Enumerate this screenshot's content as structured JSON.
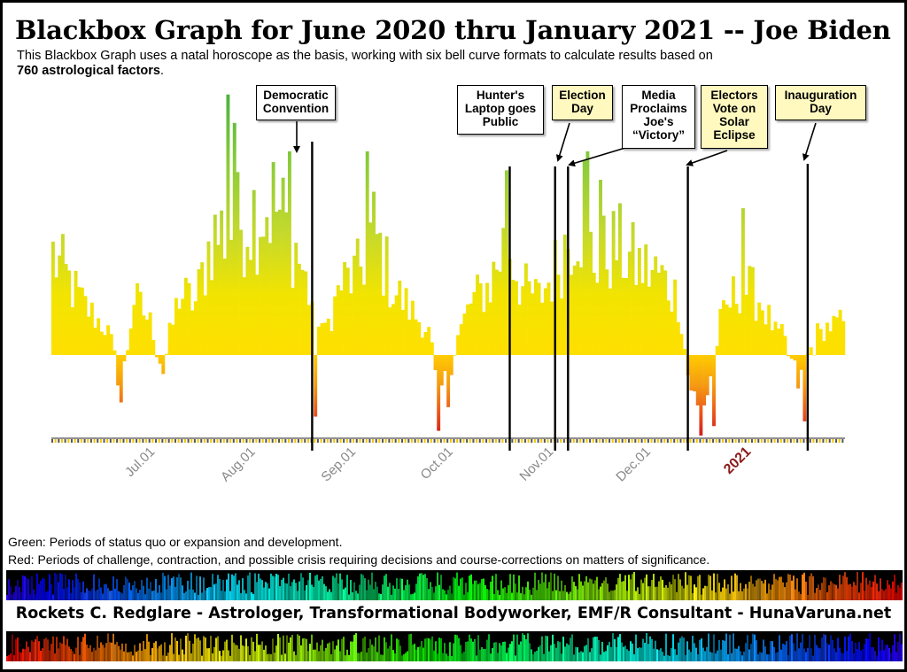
{
  "title": "Blackbox Graph for June 2020 thru January 2021 -- Joe Biden",
  "subtitle": {
    "text": "This Blackbox Graph uses a natal horoscope as the basis, working with six bell curve formats to calculate results based on",
    "bold": "760 astrological factors",
    "tail": "."
  },
  "chart_data": {
    "type": "bar",
    "x_range": [
      "2020-06-01",
      "2021-01-31"
    ],
    "baseline": 0,
    "ylim": [
      -90,
      290
    ],
    "x_tick_labels": [
      {
        "label": "Jul.01",
        "date": "2020-07-01",
        "color": "#888888"
      },
      {
        "label": "Aug.01",
        "date": "2020-08-01",
        "color": "#888888"
      },
      {
        "label": "Sep.01",
        "date": "2020-09-01",
        "color": "#888888"
      },
      {
        "label": "Oct.01",
        "date": "2020-10-01",
        "color": "#888888"
      },
      {
        "label": "Nov.01",
        "date": "2020-11-01",
        "color": "#888888"
      },
      {
        "label": "Dec.01",
        "date": "2020-12-01",
        "color": "#888888"
      },
      {
        "label": "2021",
        "date": "2021-01-01",
        "color": "#8b1a1a"
      }
    ],
    "daily_keyframes": [
      {
        "date": "2020-06-01",
        "value": 105
      },
      {
        "date": "2020-06-10",
        "value": 55
      },
      {
        "date": "2020-06-18",
        "value": 25
      },
      {
        "date": "2020-06-22",
        "value": -40
      },
      {
        "date": "2020-06-26",
        "value": 60
      },
      {
        "date": "2020-07-01",
        "value": 35
      },
      {
        "date": "2020-07-05",
        "value": -15
      },
      {
        "date": "2020-07-10",
        "value": 65
      },
      {
        "date": "2020-07-15",
        "value": 55
      },
      {
        "date": "2020-07-20",
        "value": 125
      },
      {
        "date": "2020-07-27",
        "value": 135
      },
      {
        "date": "2020-08-01",
        "value": 150
      },
      {
        "date": "2020-08-08",
        "value": 160
      },
      {
        "date": "2020-08-14",
        "value": 125
      },
      {
        "date": "2020-08-19",
        "value": 65
      },
      {
        "date": "2020-08-24",
        "value": 25
      },
      {
        "date": "2020-08-29",
        "value": 75
      },
      {
        "date": "2020-09-03",
        "value": 85
      },
      {
        "date": "2020-09-08",
        "value": 130
      },
      {
        "date": "2020-09-14",
        "value": 70
      },
      {
        "date": "2020-09-20",
        "value": 45
      },
      {
        "date": "2020-09-25",
        "value": 25
      },
      {
        "date": "2020-09-28",
        "value": -45
      },
      {
        "date": "2020-10-01",
        "value": -15
      },
      {
        "date": "2020-10-04",
        "value": 20
      },
      {
        "date": "2020-10-08",
        "value": 55
      },
      {
        "date": "2020-10-14",
        "value": 75
      },
      {
        "date": "2020-10-19",
        "value": 125
      },
      {
        "date": "2020-10-24",
        "value": 70
      },
      {
        "date": "2020-10-29",
        "value": 60
      },
      {
        "date": "2020-11-03",
        "value": 90
      },
      {
        "date": "2020-11-10",
        "value": 150
      },
      {
        "date": "2020-11-15",
        "value": 100
      },
      {
        "date": "2020-11-22",
        "value": 115
      },
      {
        "date": "2020-11-28",
        "value": 95
      },
      {
        "date": "2020-12-05",
        "value": 85
      },
      {
        "date": "2020-12-11",
        "value": 60
      },
      {
        "date": "2020-12-14",
        "value": -20
      },
      {
        "date": "2020-12-17",
        "value": -60
      },
      {
        "date": "2020-12-20",
        "value": -40
      },
      {
        "date": "2020-12-24",
        "value": 35
      },
      {
        "date": "2020-12-30",
        "value": 75
      },
      {
        "date": "2021-01-05",
        "value": 60
      },
      {
        "date": "2021-01-10",
        "value": 25
      },
      {
        "date": "2021-01-13",
        "value": 10
      },
      {
        "date": "2021-01-17",
        "value": -30
      },
      {
        "date": "2021-01-22",
        "value": 15
      },
      {
        "date": "2021-01-26",
        "value": 30
      },
      {
        "date": "2021-01-31",
        "value": 35
      }
    ],
    "spikes": [
      {
        "date": "2020-06-22",
        "value": -50
      },
      {
        "date": "2020-07-05",
        "value": -20
      },
      {
        "date": "2020-07-25",
        "value": 275
      },
      {
        "date": "2020-07-27",
        "value": 245
      },
      {
        "date": "2020-08-13",
        "value": 215
      },
      {
        "date": "2020-08-21",
        "value": -65
      },
      {
        "date": "2020-09-06",
        "value": 215
      },
      {
        "date": "2020-09-28",
        "value": -80
      },
      {
        "date": "2020-10-01",
        "value": -55
      },
      {
        "date": "2020-10-19",
        "value": 195
      },
      {
        "date": "2020-11-12",
        "value": 205
      },
      {
        "date": "2020-11-13",
        "value": 215
      },
      {
        "date": "2020-11-17",
        "value": 185
      },
      {
        "date": "2020-12-18",
        "value": -85
      },
      {
        "date": "2020-12-22",
        "value": -75
      },
      {
        "date": "2020-12-31",
        "value": 155
      },
      {
        "date": "2021-01-19",
        "value": -70
      }
    ],
    "annotations": [
      {
        "label": "Democratic\nConvention",
        "date": "2020-08-20",
        "style": "white"
      },
      {
        "label": "Hunter's\nLaptop goes\nPublic",
        "date": "2020-10-20",
        "style": "white"
      },
      {
        "label": "Election\nDay",
        "date": "2020-11-03",
        "style": "yellow"
      },
      {
        "label": "Media\nProclaims\nJoe's\n“Victory”",
        "date": "2020-11-07",
        "style": "white"
      },
      {
        "label": "Electors\nVote on\nSolar\nEclipse",
        "date": "2020-12-14",
        "style": "yellow"
      },
      {
        "label": "Inauguration\nDay",
        "date": "2021-01-20",
        "style": "yellow"
      }
    ]
  },
  "legend": {
    "green": "Green:  Periods of status quo or expansion and development.",
    "red": "Red:  Periods of challenge, contraction, and possible crisis requiring decisions and course-corrections on matters of significance."
  },
  "footer": "Rockets C. Redglare  -  Astrologer, Transformational Bodyworker, EMF/R Consultant  -  HunaVaruna.net"
}
